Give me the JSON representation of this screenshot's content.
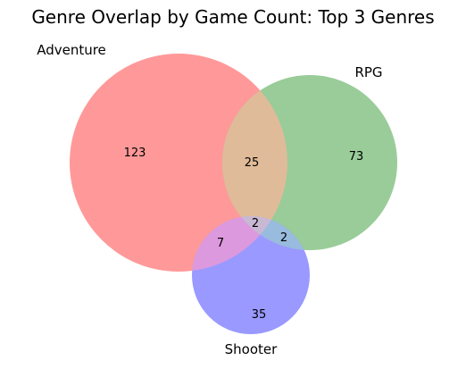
{
  "diagram": {
    "title": "Genre Overlap by Game Count: Top 3 Genres",
    "sets": [
      {
        "key": "adventure",
        "label": "Adventure",
        "color": "#ff9999"
      },
      {
        "key": "rpg",
        "label": "RPG",
        "color": "#99cc99"
      },
      {
        "key": "shooter",
        "label": "Shooter",
        "color": "#9999ff"
      }
    ],
    "regions": {
      "adventure_only": "123",
      "rpg_only": "73",
      "shooter_only": "35",
      "adventure_rpg": "25",
      "adventure_shooter": "7",
      "rpg_shooter": "2",
      "all_three": "2"
    },
    "overlap_colors": {
      "adventure_rpg": "#e0bb99",
      "adventure_shooter": "#dd99dd",
      "rpg_shooter": "#99bbdd",
      "all_three": "#c9b8d4"
    }
  }
}
